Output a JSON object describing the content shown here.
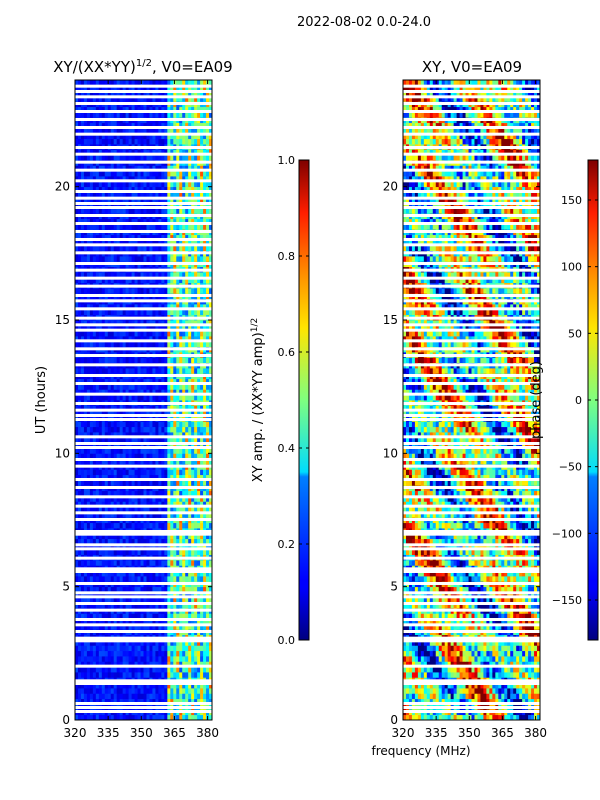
{
  "figure": {
    "suptitle": "2022-08-02 0.0-24.0",
    "shared_xlabel": "frequency (MHz)"
  },
  "chart_data": [
    {
      "type": "heatmap",
      "title": "XY/(XX*YY)",
      "title_exponent": "1/2",
      "title_suffix": ", V0=EA09",
      "xlabel": "",
      "ylabel": "UT (hours)",
      "xlim": [
        320,
        382
      ],
      "ylim": [
        0,
        24
      ],
      "xticks": [
        "320",
        "335",
        "350",
        "365",
        "380"
      ],
      "xtick_values": [
        320,
        335,
        350,
        365,
        380
      ],
      "yticks": [
        "0",
        "5",
        "10",
        "15",
        "20"
      ],
      "ytick_values": [
        0,
        5,
        10,
        15,
        20
      ],
      "colormap": "jet",
      "colorbar": {
        "label": "XY amp. / (XX*YY amp)",
        "label_exponent": "1/2",
        "range": [
          0.0,
          1.0
        ],
        "ticks": [
          "0.0",
          "0.2",
          "0.4",
          "0.6",
          "0.8",
          "1.0"
        ],
        "tick_values": [
          0.0,
          0.2,
          0.4,
          0.6,
          0.8,
          1.0
        ]
      },
      "flagged_hours": [
        0.3,
        0.45,
        0.6,
        1.35,
        1.45,
        2.0,
        2.95,
        3.05,
        3.3,
        3.55,
        3.75,
        4.1,
        4.35,
        4.6,
        4.75,
        5.1,
        5.55,
        5.65,
        6.05,
        6.4,
        6.55,
        6.95,
        7.05,
        7.5,
        7.75,
        8.0,
        8.35,
        8.7,
        9.0,
        9.5,
        9.75,
        10.2,
        10.35,
        10.6,
        11.25,
        11.4,
        11.6,
        11.85,
        12.2,
        12.6,
        12.9,
        13.3,
        13.65,
        13.9,
        14.2,
        14.6,
        14.8,
        15.05,
        15.4,
        15.7,
        15.9,
        16.25,
        16.55,
        16.85,
        17.1,
        17.5,
        17.8,
        18.0,
        18.3,
        18.6,
        18.9,
        19.2,
        19.35,
        19.55,
        19.8,
        20.2,
        20.6,
        20.9,
        21.2,
        21.45,
        21.95,
        22.2,
        22.5,
        22.8,
        23.1,
        23.35,
        23.55,
        23.75
      ]
    },
    {
      "type": "heatmap",
      "title": "XY, V0=EA09",
      "xlabel": "frequency (MHz)",
      "ylabel": "",
      "xlim": [
        320,
        382
      ],
      "ylim": [
        0,
        24
      ],
      "xticks": [
        "320",
        "335",
        "350",
        "365",
        "380"
      ],
      "xtick_values": [
        320,
        335,
        350,
        365,
        380
      ],
      "yticks": [
        "0",
        "5",
        "10",
        "15",
        "20"
      ],
      "ytick_values": [
        0,
        5,
        10,
        15,
        20
      ],
      "colormap": "jet",
      "colorbar": {
        "label": "phase (deg)",
        "range": [
          -180,
          180
        ],
        "ticks": [
          "−150",
          "−100",
          "−50",
          "0",
          "50",
          "100",
          "150"
        ],
        "tick_values": [
          -150,
          -100,
          -50,
          0,
          50,
          100,
          150
        ]
      },
      "flagged_hours": [
        0.3,
        0.45,
        0.6,
        1.35,
        1.45,
        2.0,
        2.95,
        3.05,
        3.3,
        3.55,
        3.75,
        4.1,
        4.35,
        4.6,
        4.75,
        5.1,
        5.55,
        5.65,
        6.05,
        6.4,
        6.55,
        6.95,
        7.05,
        7.5,
        7.75,
        8.0,
        8.35,
        8.7,
        9.0,
        9.5,
        9.75,
        10.2,
        10.35,
        10.6,
        11.25,
        11.4,
        11.6,
        11.85,
        12.2,
        12.6,
        12.9,
        13.3,
        13.65,
        13.9,
        14.2,
        14.6,
        14.8,
        15.05,
        15.4,
        15.7,
        15.9,
        16.25,
        16.55,
        16.85,
        17.1,
        17.5,
        17.8,
        18.0,
        18.3,
        18.6,
        18.9,
        19.2,
        19.35,
        19.55,
        19.8,
        20.2,
        20.6,
        20.9,
        21.2,
        21.45,
        21.95,
        22.2,
        22.5,
        22.8,
        23.1,
        23.35,
        23.55,
        23.75
      ]
    }
  ]
}
